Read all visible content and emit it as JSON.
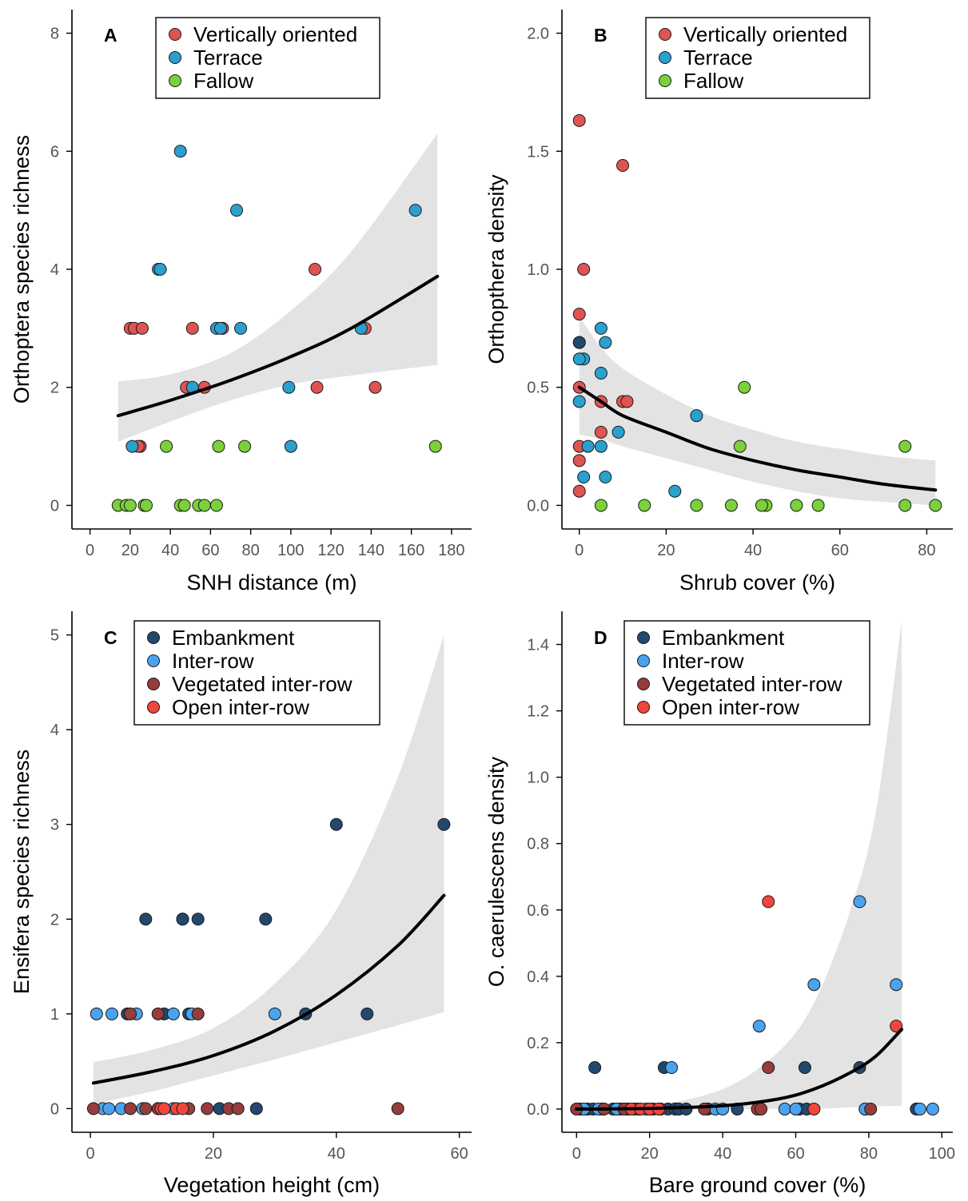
{
  "colors": {
    "vertical": "#e05353",
    "terrace": "#2aa0cf",
    "fallow": "#7ad13a",
    "embankment": "#23486e",
    "inter_row": "#4aa3ef",
    "vegetated_inter_row": "#963c3c",
    "open_inter_row": "#f2453c",
    "fit_line": "#000000",
    "ci_band": "#e3e3e3"
  },
  "chart_data": [
    {
      "panel": "A",
      "type": "scatter",
      "xlabel": "SNH distance (m)",
      "ylabel": "Orthoptera species richness",
      "xlim": [
        -9,
        190
      ],
      "ylim": [
        -0.4,
        8.4
      ],
      "xticks": [
        0,
        20,
        40,
        60,
        80,
        100,
        120,
        140,
        160,
        180
      ],
      "yticks": [
        0,
        2,
        4,
        6,
        8
      ],
      "legend": "top-center",
      "series": [
        {
          "name": "Vertically oriented",
          "color_key": "vertical",
          "x": [
            20,
            22,
            26,
            25,
            24,
            51,
            48,
            57,
            66,
            112,
            113,
            137,
            142
          ],
          "y": [
            3,
            3,
            3,
            1,
            1,
            3,
            2,
            2,
            3,
            4,
            2,
            3,
            2
          ]
        },
        {
          "name": "Terrace",
          "color_key": "terrace",
          "x": [
            45,
            34,
            35,
            73,
            63,
            65,
            75,
            51,
            99,
            100,
            135,
            162,
            21
          ],
          "y": [
            6,
            4,
            4,
            5,
            3,
            3,
            3,
            2,
            2,
            1,
            3,
            5,
            1
          ]
        },
        {
          "name": "Fallow",
          "color_key": "fallow",
          "x": [
            14,
            18,
            20,
            27,
            28,
            38,
            45,
            47,
            54,
            57,
            63,
            64,
            77,
            172
          ],
          "y": [
            0,
            0,
            0,
            0,
            0,
            1,
            0,
            0,
            0,
            0,
            0,
            1,
            1,
            1
          ]
        }
      ],
      "fit": {
        "x": [
          14,
          40,
          70,
          100,
          130,
          173
        ],
        "y": [
          1.52,
          1.78,
          2.12,
          2.52,
          3.0,
          3.88
        ],
        "lower": [
          1.08,
          1.42,
          1.78,
          2.05,
          2.2,
          2.38
        ],
        "upper": [
          2.1,
          2.22,
          2.58,
          3.3,
          4.3,
          6.3
        ]
      }
    },
    {
      "panel": "B",
      "type": "scatter",
      "xlabel": "Shrub cover (%)",
      "ylabel": "Orthopthera density",
      "xlim": [
        -4,
        86
      ],
      "ylim": [
        -0.1,
        2.1
      ],
      "xticks": [
        0,
        20,
        40,
        60,
        80
      ],
      "yticks": [
        0.0,
        0.5,
        1.0,
        1.5,
        2.0
      ],
      "ytick_labels": [
        "0.0",
        "0.5",
        "1.0",
        "1.5",
        "2.0"
      ],
      "legend": "top-center",
      "series": [
        {
          "name": "Vertically oriented",
          "color_key": "vertical",
          "x": [
            0,
            10,
            1,
            0,
            0,
            0,
            0,
            0,
            5,
            10,
            11,
            5
          ],
          "y": [
            1.63,
            1.44,
            1.0,
            0.81,
            0.5,
            0.25,
            0.19,
            0.06,
            0.44,
            0.44,
            0.44,
            0.31
          ],
          "stroke": "#000000"
        },
        {
          "name": "Terrace",
          "color_key": "terrace",
          "x": [
            5,
            0,
            1,
            6,
            5,
            0,
            2,
            5,
            9,
            27,
            1,
            6,
            22
          ],
          "y": [
            0.75,
            0.69,
            0.62,
            0.69,
            0.56,
            0.44,
            0.25,
            0.25,
            0.31,
            0.38,
            0.12,
            0.12,
            0.06
          ]
        },
        {
          "name": "Fallow",
          "color_key": "fallow",
          "x": [
            5,
            15,
            27,
            35,
            38,
            43,
            42,
            50,
            55,
            37,
            75,
            75,
            82
          ],
          "y": [
            0,
            0,
            0,
            0,
            0.5,
            0,
            0,
            0,
            0,
            0.25,
            0.25,
            0,
            0
          ]
        }
      ],
      "extra_points": [
        {
          "x": 0,
          "y": 0.69,
          "color_key": "embankment"
        },
        {
          "x": 0,
          "y": 0.62,
          "color_key": "terrace"
        }
      ],
      "fit": {
        "x": [
          0,
          5,
          10,
          20,
          30,
          40,
          50,
          60,
          70,
          82
        ],
        "y": [
          0.5,
          0.44,
          0.38,
          0.31,
          0.24,
          0.19,
          0.15,
          0.12,
          0.09,
          0.065
        ],
        "lower": [
          0.3,
          0.28,
          0.25,
          0.2,
          0.15,
          0.1,
          0.06,
          0.03,
          0.015,
          0.0
        ],
        "upper": [
          0.8,
          0.67,
          0.58,
          0.47,
          0.38,
          0.32,
          0.27,
          0.24,
          0.21,
          0.19
        ]
      }
    },
    {
      "panel": "C",
      "type": "scatter",
      "xlabel": "Vegetation height (cm)",
      "ylabel": "Ensifera species richness",
      "xlim": [
        -3,
        62
      ],
      "ylim": [
        -0.25,
        5.25
      ],
      "xticks": [
        0,
        20,
        40,
        60
      ],
      "yticks": [
        0,
        1,
        2,
        3,
        4,
        5
      ],
      "legend": "top-center",
      "series": [
        {
          "name": "Embankment",
          "color_key": "embankment",
          "x": [
            9,
            15,
            15,
            17.5,
            28.5,
            40,
            57.5,
            35,
            45,
            6,
            12,
            27,
            21,
            16
          ],
          "y": [
            2,
            2,
            2,
            2,
            2,
            3,
            3,
            1,
            1,
            1,
            1,
            0,
            0,
            1
          ]
        },
        {
          "name": "Inter-row",
          "color_key": "inter_row",
          "x": [
            1,
            3.5,
            7.5,
            13.5,
            16.5,
            30,
            2,
            3,
            5,
            8.5,
            13.5,
            11
          ],
          "y": [
            1,
            1,
            1,
            1,
            1,
            1,
            0,
            0,
            0,
            0,
            0,
            0
          ]
        },
        {
          "name": "Vegetated inter-row",
          "color_key": "vegetated_inter_row",
          "x": [
            6.5,
            11,
            17.5,
            6.5,
            9,
            11,
            16,
            19,
            22.5,
            24,
            50,
            0.5
          ],
          "y": [
            1,
            1,
            1,
            0,
            0,
            0,
            0,
            0,
            0,
            0,
            0,
            0
          ]
        },
        {
          "name": "Open inter-row",
          "color_key": "open_inter_row",
          "x": [
            11.5,
            12,
            14,
            15
          ],
          "y": [
            0,
            0,
            0,
            0
          ]
        }
      ],
      "fit": {
        "x": [
          0.5,
          10,
          20,
          30,
          40,
          50,
          57.5
        ],
        "y": [
          0.27,
          0.39,
          0.56,
          0.82,
          1.2,
          1.72,
          2.25
        ],
        "lower": [
          0.05,
          0.18,
          0.35,
          0.52,
          0.7,
          0.88,
          1.02
        ],
        "upper": [
          0.49,
          0.62,
          0.85,
          1.32,
          2.1,
          3.5,
          5.0
        ]
      }
    },
    {
      "panel": "D",
      "type": "scatter",
      "xlabel": "Bare ground cover (%)",
      "ylabel": "O. caerulescens density",
      "xlim": [
        -4,
        103
      ],
      "ylim": [
        -0.07,
        1.5
      ],
      "xticks": [
        0,
        20,
        40,
        60,
        80,
        100
      ],
      "yticks": [
        0.0,
        0.2,
        0.4,
        0.6,
        0.8,
        1.0,
        1.2,
        1.4
      ],
      "ytick_labels": [
        "0.0",
        "0.2",
        "0.4",
        "0.6",
        "0.8",
        "1.0",
        "1.2",
        "1.4"
      ],
      "legend": "top-center",
      "series": [
        {
          "name": "Embankment",
          "color_key": "embankment",
          "x": [
            5,
            24,
            62.5,
            77.5,
            1,
            3,
            4.5,
            7,
            10,
            12,
            14,
            17,
            25,
            27,
            28,
            30,
            36,
            44,
            61,
            63,
            79,
            93
          ],
          "y": [
            0.125,
            0.125,
            0.125,
            0.125,
            0,
            0,
            0,
            0,
            0,
            0,
            0,
            0,
            0,
            0,
            0,
            0,
            0,
            0,
            0,
            0,
            0,
            0
          ]
        },
        {
          "name": "Inter-row",
          "color_key": "inter_row",
          "x": [
            26,
            50,
            65,
            77.5,
            87.5,
            2,
            6,
            11,
            19,
            38,
            40,
            57,
            60,
            79,
            94,
            97.5
          ],
          "y": [
            0.125,
            0.25,
            0.375,
            0.625,
            0.375,
            0,
            0,
            0,
            0,
            0,
            0,
            0,
            0,
            0,
            0,
            0
          ]
        },
        {
          "name": "Vegetated inter-row",
          "color_key": "vegetated_inter_row",
          "x": [
            52.5,
            0,
            7.5,
            13,
            16,
            21,
            23,
            35,
            49.5,
            50.5,
            80.5
          ],
          "y": [
            0.125,
            0,
            0,
            0,
            0,
            0,
            0,
            0,
            0,
            0,
            0
          ]
        },
        {
          "name": "Open inter-row",
          "color_key": "open_inter_row",
          "x": [
            52.5,
            87.5,
            15,
            17.5,
            20,
            22.5,
            65
          ],
          "y": [
            0.625,
            0.25,
            0,
            0,
            0,
            0,
            0
          ]
        }
      ],
      "fit": {
        "x": [
          0,
          20,
          40,
          55,
          65,
          75,
          82,
          89
        ],
        "y": [
          0.0,
          0.002,
          0.01,
          0.03,
          0.06,
          0.11,
          0.16,
          0.24
        ],
        "lower": [
          0.0,
          0.0,
          0.0,
          0.0,
          0.0,
          0.005,
          0.008,
          0.01
        ],
        "upper": [
          0.0,
          0.01,
          0.06,
          0.17,
          0.32,
          0.6,
          0.9,
          1.47
        ]
      }
    }
  ]
}
